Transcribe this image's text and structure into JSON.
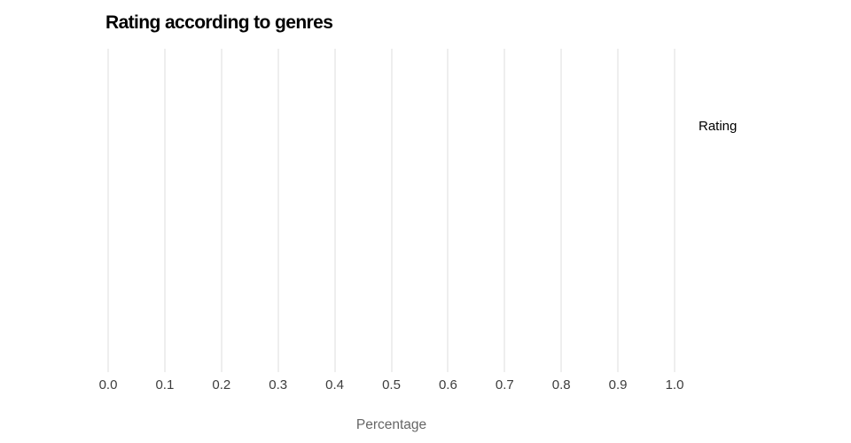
{
  "chart": {
    "title": "Rating according to genres",
    "x_axis_label": "Percentage",
    "legend_title": "Rating"
  },
  "chart_data": {
    "type": "bar",
    "title": "Rating according to genres",
    "xlabel": "Percentage",
    "ylabel": "",
    "xlim": [
      0.0,
      1.0
    ],
    "x_tick_labels": [
      "0.0",
      "0.1",
      "0.2",
      "0.3",
      "0.4",
      "0.5",
      "0.6",
      "0.7",
      "0.8",
      "0.9",
      "1.0"
    ],
    "grid": "vertical-only",
    "gridline_color": "#dddddd",
    "legend_position": "right",
    "legend_title": "Rating",
    "series": [],
    "categories": [],
    "values": [],
    "note_plot_area_empty": true
  }
}
